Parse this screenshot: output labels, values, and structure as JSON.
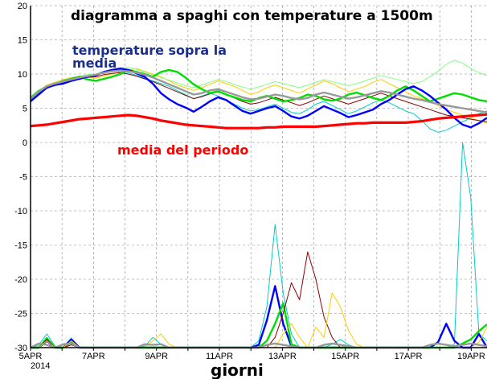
{
  "chart_data": {
    "type": "line",
    "title": "diagramma a spaghi con temperature a 1500m",
    "xlabel": "giorni",
    "ylabel": "",
    "ylim": [
      -30,
      20
    ],
    "yticks": [
      20,
      15,
      10,
      5,
      0,
      -5,
      -10,
      -15,
      -20,
      -25,
      -30
    ],
    "xticks": [
      "5APR",
      "7APR",
      "9APR",
      "11APR",
      "13APR",
      "15APR",
      "17APR",
      "19APR"
    ],
    "x_year_label": "2014",
    "grid": true,
    "annotations": {
      "above_mean": "temperature sopra la media",
      "period_mean": "media del periodo"
    },
    "series": [
      {
        "name": "media del periodo",
        "color": "#ff0000",
        "values": [
          2.4,
          2.5,
          2.6,
          2.8,
          3.0,
          3.2,
          3.4,
          3.5,
          3.6,
          3.7,
          3.8,
          3.9,
          4.0,
          3.9,
          3.7,
          3.5,
          3.2,
          3.0,
          2.8,
          2.6,
          2.5,
          2.4,
          2.3,
          2.2,
          2.1,
          2.1,
          2.1,
          2.1,
          2.1,
          2.2,
          2.2,
          2.3,
          2.3,
          2.3,
          2.3,
          2.3,
          2.4,
          2.5,
          2.6,
          2.7,
          2.8,
          2.8,
          2.9,
          2.9,
          2.9,
          2.9,
          2.9,
          3.0,
          3.1,
          3.3,
          3.5,
          3.6,
          3.7,
          3.8,
          3.9,
          4.0,
          4.1
        ]
      },
      {
        "color": "#00dd00",
        "values": [
          6.5,
          7.5,
          8.0,
          8.5,
          9.0,
          9.3,
          9.6,
          9.2,
          9.0,
          9.3,
          9.6,
          10.0,
          10.6,
          10.3,
          10.0,
          9.6,
          10.3,
          10.6,
          10.3,
          9.5,
          8.5,
          7.8,
          7.2,
          7.5,
          7.0,
          6.6,
          6.2,
          6.0,
          6.5,
          6.8,
          6.4,
          6.0,
          6.2,
          6.5,
          7.0,
          6.8,
          6.3,
          6.1,
          6.4,
          7.0,
          7.3,
          6.9,
          6.5,
          6.2,
          6.8,
          7.6,
          8.2,
          7.6,
          6.8,
          6.0,
          6.4,
          6.8,
          7.2,
          7.0,
          6.6,
          6.2,
          6.0
        ]
      },
      {
        "color": "#00cccc",
        "values": [
          6.2,
          7.2,
          8.2,
          8.6,
          8.8,
          9.2,
          9.4,
          9.6,
          9.8,
          10.2,
          10.5,
          10.4,
          10.2,
          9.8,
          9.4,
          9.0,
          8.6,
          8.2,
          7.6,
          7.0,
          6.4,
          6.8,
          7.2,
          6.8,
          6.2,
          5.6,
          5.0,
          4.6,
          4.8,
          5.2,
          5.6,
          5.0,
          4.4,
          4.2,
          4.8,
          5.6,
          6.0,
          5.4,
          4.8,
          4.2,
          4.6,
          5.2,
          5.8,
          6.2,
          5.8,
          5.2,
          4.6,
          4.2,
          3.2,
          2.0,
          1.5,
          1.8,
          2.4,
          3.0,
          3.6,
          4.2,
          4.6
        ]
      },
      {
        "color": "#0000ff",
        "values": [
          6.0,
          7.0,
          8.0,
          8.4,
          8.6,
          9.0,
          9.3,
          9.6,
          9.8,
          10.3,
          10.6,
          10.8,
          10.6,
          10.1,
          9.6,
          8.6,
          7.2,
          6.3,
          5.6,
          5.1,
          4.5,
          5.2,
          6.0,
          6.6,
          6.2,
          5.4,
          4.6,
          4.2,
          4.6,
          5.0,
          5.3,
          4.6,
          3.8,
          3.5,
          3.9,
          4.6,
          5.3,
          4.8,
          4.3,
          3.7,
          4.0,
          4.4,
          4.8,
          5.6,
          6.2,
          7.0,
          7.8,
          8.2,
          7.6,
          6.8,
          5.8,
          4.8,
          3.6,
          2.6,
          2.2,
          2.8,
          3.6
        ]
      },
      {
        "color": "#999999",
        "values": [
          6.4,
          7.4,
          8.2,
          8.6,
          8.9,
          9.2,
          9.5,
          9.7,
          9.9,
          10.2,
          10.4,
          10.5,
          10.4,
          10.2,
          9.9,
          9.5,
          9.0,
          8.5,
          8.0,
          7.5,
          7.0,
          7.2,
          7.6,
          7.8,
          7.4,
          7.0,
          6.6,
          6.3,
          6.4,
          6.7,
          7.0,
          6.8,
          6.5,
          6.3,
          6.5,
          7.0,
          7.3,
          7.0,
          6.7,
          6.4,
          6.6,
          6.9,
          7.2,
          7.5,
          7.3,
          7.0,
          6.7,
          6.4,
          6.2,
          5.9,
          5.6,
          5.4,
          5.2,
          5.0,
          4.8,
          4.6,
          4.4
        ]
      },
      {
        "color": "#ffcc00",
        "values": [
          6.6,
          7.6,
          8.4,
          8.8,
          9.2,
          9.5,
          9.7,
          9.6,
          9.4,
          9.7,
          10.0,
          10.3,
          10.6,
          10.8,
          10.4,
          10.0,
          9.6,
          9.0,
          8.4,
          8.0,
          7.6,
          8.0,
          8.5,
          9.0,
          8.6,
          8.2,
          7.6,
          7.0,
          7.4,
          8.0,
          8.4,
          8.0,
          7.6,
          7.2,
          7.8,
          8.4,
          9.0,
          8.6,
          8.0,
          7.4,
          7.8,
          8.2,
          8.8,
          9.2,
          8.6,
          8.0,
          7.4,
          6.8,
          6.4,
          6.0,
          5.4,
          4.8,
          4.4,
          4.0,
          3.6,
          3.2,
          2.8
        ]
      },
      {
        "color": "#8b0000",
        "values": [
          6.3,
          7.3,
          8.1,
          8.5,
          8.7,
          9.1,
          9.4,
          9.5,
          9.6,
          9.9,
          10.1,
          10.2,
          10.0,
          9.7,
          9.3,
          8.9,
          8.4,
          7.9,
          7.4,
          6.9,
          6.4,
          6.7,
          7.1,
          7.4,
          7.0,
          6.5,
          6.0,
          5.6,
          5.8,
          6.2,
          6.6,
          6.2,
          5.8,
          5.4,
          5.8,
          6.3,
          6.8,
          6.4,
          6.0,
          5.6,
          6.0,
          6.4,
          6.8,
          7.2,
          6.8,
          6.4,
          6.0,
          5.6,
          5.2,
          4.8,
          4.4,
          4.0,
          3.8,
          3.6,
          3.4,
          3.2,
          3.0
        ]
      },
      {
        "color": "#80ff80",
        "values": [
          6.7,
          7.7,
          8.3,
          8.7,
          9.0,
          9.4,
          9.7,
          9.9,
          10.0,
          10.4,
          10.7,
          10.9,
          11.0,
          10.7,
          10.3,
          9.9,
          9.5,
          9.1,
          8.7,
          8.3,
          8.0,
          8.4,
          8.8,
          9.2,
          8.9,
          8.5,
          8.1,
          7.8,
          8.1,
          8.5,
          8.9,
          8.6,
          8.3,
          8.0,
          8.4,
          8.8,
          9.2,
          8.9,
          8.6,
          8.3,
          8.6,
          9.0,
          9.4,
          9.8,
          9.5,
          9.2,
          8.9,
          8.6,
          8.9,
          9.6,
          10.4,
          11.4,
          12.0,
          11.6,
          10.8,
          10.2,
          9.8
        ]
      }
    ],
    "low_band": {
      "note": "ensemble members clipped near the chart floor",
      "series": [
        {
          "color": "#00cccc",
          "values": [
            -30,
            -29.6,
            -28.0,
            -29.8,
            -30,
            -28.6,
            -30,
            -30,
            -30,
            -30,
            -30,
            -30,
            -30,
            -30,
            -29.8,
            -28.5,
            -29.5,
            -30,
            -30,
            -30,
            -30,
            -30,
            -30,
            -30,
            -30,
            -30,
            -30,
            -30,
            -29.0,
            -24.0,
            -12.0,
            -22.0,
            -28.0,
            -30,
            -30,
            -30,
            -30,
            -29.5,
            -28.8,
            -29.6,
            -30,
            -30,
            -30,
            -30,
            -30,
            -30,
            -30,
            -30,
            -30,
            -30,
            -30,
            -30,
            -29.5,
            0,
            -8,
            -28,
            -29
          ]
        },
        {
          "color": "#0000ff",
          "values": [
            -30,
            -30,
            -29.0,
            -30,
            -30,
            -28.8,
            -30,
            -30,
            -30,
            -30,
            -30,
            -30,
            -30,
            -30,
            -30,
            -30,
            -30,
            -30,
            -30,
            -30,
            -30,
            -30,
            -30,
            -30,
            -30,
            -30,
            -30,
            -30,
            -29.6,
            -26.0,
            -21.0,
            -26.5,
            -29.8,
            -30,
            -30,
            -30,
            -30,
            -30,
            -30,
            -30,
            -30,
            -30,
            -30,
            -30,
            -30,
            -30,
            -30,
            -30,
            -30,
            -30,
            -29.2,
            -26.5,
            -29.0,
            -30,
            -30,
            -28.0,
            -30
          ]
        },
        {
          "color": "#00dd00",
          "values": [
            -30,
            -30,
            -28.6,
            -30,
            -30,
            -29.2,
            -30,
            -30,
            -30,
            -30,
            -30,
            -30,
            -30,
            -30,
            -30,
            -30,
            -30,
            -30,
            -30,
            -30,
            -30,
            -30,
            -30,
            -30,
            -30,
            -30,
            -30,
            -30,
            -30,
            -29.0,
            -26.5,
            -23.5,
            -29.5,
            -30,
            -30,
            -30,
            -30,
            -30,
            -30,
            -30,
            -30,
            -30,
            -30,
            -30,
            -30,
            -30,
            -30,
            -30,
            -30,
            -30,
            -30,
            -30,
            -30,
            -29.4,
            -28.8,
            -27.6,
            -26.6
          ]
        },
        {
          "color": "#8b0000",
          "values": [
            -30,
            -30,
            -28.8,
            -30,
            -30,
            -29.6,
            -30,
            -30,
            -30,
            -30,
            -30,
            -30,
            -30,
            -30,
            -30,
            -30,
            -30,
            -30,
            -30,
            -30,
            -30,
            -30,
            -30,
            -30,
            -30,
            -30,
            -30,
            -30,
            -30,
            -30,
            -28.5,
            -25.0,
            -20.5,
            -23.0,
            -16.0,
            -20.0,
            -25.5,
            -28.5,
            -30,
            -30,
            -30,
            -30,
            -30,
            -30,
            -30,
            -30,
            -30,
            -30,
            -30,
            -30,
            -30,
            -30,
            -30,
            -30,
            -30,
            -30,
            -30
          ]
        },
        {
          "color": "#ffcc00",
          "values": [
            -30,
            -30,
            -29.0,
            -30,
            -30,
            -29.0,
            -30,
            -30,
            -30,
            -30,
            -30,
            -30,
            -30,
            -30,
            -30,
            -29.0,
            -28.0,
            -29.5,
            -30,
            -30,
            -30,
            -30,
            -30,
            -30,
            -30,
            -30,
            -30,
            -30,
            -30,
            -30,
            -30,
            -28.0,
            -26.5,
            -28.5,
            -30,
            -27.0,
            -28.5,
            -22.0,
            -24.0,
            -27.5,
            -29.5,
            -30,
            -30,
            -30,
            -30,
            -30,
            -30,
            -30,
            -30,
            -30,
            -30,
            -30,
            -30,
            -30,
            -30,
            -29.2,
            -27.0
          ]
        },
        {
          "color": "#999999",
          "values": [
            -30,
            -29.4,
            -29.6,
            -30,
            -29.5,
            -29.4,
            -30,
            -30,
            -30,
            -30,
            -30,
            -30,
            -30,
            -30,
            -29.5,
            -29.6,
            -29.5,
            -30,
            -30,
            -30,
            -30,
            -30,
            -30,
            -30,
            -30,
            -30,
            -30,
            -30,
            -30,
            -29.6,
            -29.4,
            -29.6,
            -29.8,
            -30,
            -30,
            -30,
            -29.6,
            -29.4,
            -29.6,
            -29.8,
            -30,
            -30,
            -30,
            -30,
            -30,
            -30,
            -30,
            -30,
            -30,
            -29.6,
            -29.4,
            -29.6,
            -29.8,
            -29.6,
            -29.4,
            -29.6,
            -29.8
          ]
        }
      ]
    }
  }
}
